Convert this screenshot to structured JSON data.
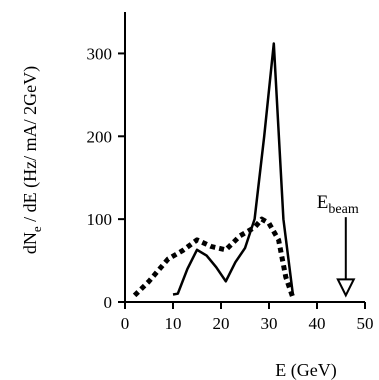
{
  "chart_data": {
    "type": "line",
    "xlabel": "E (GeV)",
    "ylabel": "dN_e / dE (Hz/ mA/ 2GeV)",
    "xlim": [
      0,
      50
    ],
    "ylim": [
      0,
      350
    ],
    "x_ticks": [
      "0",
      "10",
      "20",
      "30",
      "40",
      "50"
    ],
    "y_ticks": [
      "0",
      "100",
      "200",
      "300"
    ],
    "grid": false,
    "series": [
      {
        "style": "solid",
        "color": "#000000",
        "points": [
          [
            10,
            9
          ],
          [
            11,
            10
          ],
          [
            13,
            40
          ],
          [
            15,
            63
          ],
          [
            17,
            56
          ],
          [
            19,
            42
          ],
          [
            21,
            25
          ],
          [
            23,
            48
          ],
          [
            25,
            65
          ],
          [
            27,
            100
          ],
          [
            29,
            200
          ],
          [
            31,
            312
          ],
          [
            33,
            100
          ],
          [
            35,
            8
          ]
        ]
      },
      {
        "style": "dotted",
        "color": "#000000",
        "points": [
          [
            2,
            8
          ],
          [
            5,
            25
          ],
          [
            9,
            52
          ],
          [
            12,
            62
          ],
          [
            15,
            75
          ],
          [
            18,
            67
          ],
          [
            21,
            63
          ],
          [
            24,
            80
          ],
          [
            27,
            90
          ],
          [
            28.5,
            100
          ],
          [
            30,
            95
          ],
          [
            32,
            75
          ],
          [
            33.5,
            30
          ],
          [
            35,
            5
          ]
        ]
      }
    ],
    "annotation": {
      "label_main": "E",
      "label_sub": "beam",
      "x": 46,
      "arrow_from_y": 100,
      "arrow_to_y": 8
    }
  }
}
